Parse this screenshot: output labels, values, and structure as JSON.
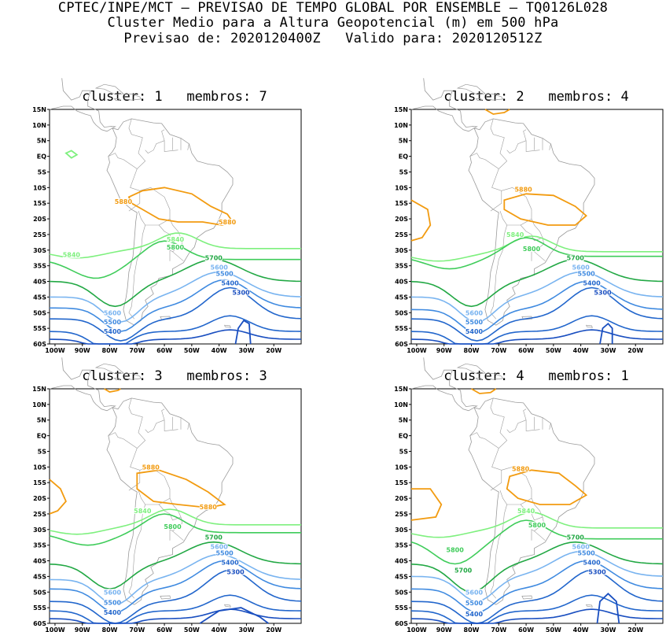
{
  "header": {
    "line1": "CPTEC/INPE/MCT – PREVISAO DE TEMPO GLOBAL POR ENSEMBLE – TQ0126L028",
    "line2": "Cluster Medio para a Altura Geopotencial (m) em 500 hPa",
    "line3": "Previsao de: 2020120400Z   Valido para: 2020120512Z"
  },
  "axes": {
    "lat_labels": [
      "15N",
      "10N",
      "5N",
      "EQ",
      "5S",
      "10S",
      "15S",
      "20S",
      "25S",
      "30S",
      "35S",
      "40S",
      "45S",
      "50S",
      "55S",
      "60S"
    ],
    "lon_labels": [
      "100W",
      "90W",
      "80W",
      "70W",
      "60W",
      "50W",
      "40W",
      "30W",
      "20W"
    ]
  },
  "colors": {
    "c5300": "#1a4fc0",
    "c5400": "#2266cc",
    "c5500": "#3f8ae0",
    "c5600": "#79b4f0",
    "c5700": "#22a844",
    "c5800": "#3fcc5a",
    "c5840": "#7ef07e",
    "c5880": "#f29b10",
    "coast": "#9a9a9a"
  },
  "panels": [
    {
      "title": "cluster: 1   membros: 7",
      "contours": [
        {
          "level": "5300",
          "labels": [
            "5300"
          ]
        },
        {
          "level": "5400",
          "labels": [
            "5400",
            "5400"
          ]
        },
        {
          "level": "5500",
          "labels": [
            "5500",
            "5500"
          ]
        },
        {
          "level": "5600",
          "labels": [
            "5600",
            "5600"
          ]
        },
        {
          "level": "5700",
          "labels": [
            "5700"
          ]
        },
        {
          "level": "5800",
          "labels": [
            "5800"
          ]
        },
        {
          "level": "5840",
          "labels": [
            "5840",
            "5840"
          ]
        },
        {
          "level": "5880",
          "labels": [
            "5880",
            "5880"
          ]
        }
      ]
    },
    {
      "title": "cluster: 2   membros: 4",
      "contours": [
        {
          "level": "5300",
          "labels": [
            "5300"
          ]
        },
        {
          "level": "5400",
          "labels": [
            "5400",
            "5400"
          ]
        },
        {
          "level": "5500",
          "labels": [
            "5500",
            "5500"
          ]
        },
        {
          "level": "5600",
          "labels": [
            "5600",
            "5600"
          ]
        },
        {
          "level": "5700",
          "labels": [
            "5700"
          ]
        },
        {
          "level": "5800",
          "labels": [
            "5800"
          ]
        },
        {
          "level": "5840",
          "labels": [
            "5840"
          ]
        },
        {
          "level": "5880",
          "labels": [
            "5880"
          ]
        }
      ]
    },
    {
      "title": "cluster: 3   membros: 3",
      "contours": [
        {
          "level": "5300",
          "labels": [
            "5300"
          ]
        },
        {
          "level": "5400",
          "labels": [
            "5400",
            "5400"
          ]
        },
        {
          "level": "5500",
          "labels": [
            "5500",
            "5500"
          ]
        },
        {
          "level": "5600",
          "labels": [
            "5600",
            "5600"
          ]
        },
        {
          "level": "5700",
          "labels": [
            "5700"
          ]
        },
        {
          "level": "5800",
          "labels": [
            "5800"
          ]
        },
        {
          "level": "5840",
          "labels": [
            "5840"
          ]
        },
        {
          "level": "5880",
          "labels": [
            "5880",
            "5880"
          ]
        }
      ]
    },
    {
      "title": "cluster: 4   membros: 1",
      "contours": [
        {
          "level": "5300",
          "labels": [
            "5300"
          ]
        },
        {
          "level": "5400",
          "labels": [
            "5400",
            "5400"
          ]
        },
        {
          "level": "5500",
          "labels": [
            "5500",
            "5500"
          ]
        },
        {
          "level": "5600",
          "labels": [
            "5600",
            "5600"
          ]
        },
        {
          "level": "5700",
          "labels": [
            "5700",
            "5700"
          ]
        },
        {
          "level": "5800",
          "labels": [
            "5800",
            "5800"
          ]
        },
        {
          "level": "5840",
          "labels": [
            "5840"
          ]
        },
        {
          "level": "5880",
          "labels": [
            "5880"
          ]
        }
      ]
    }
  ]
}
